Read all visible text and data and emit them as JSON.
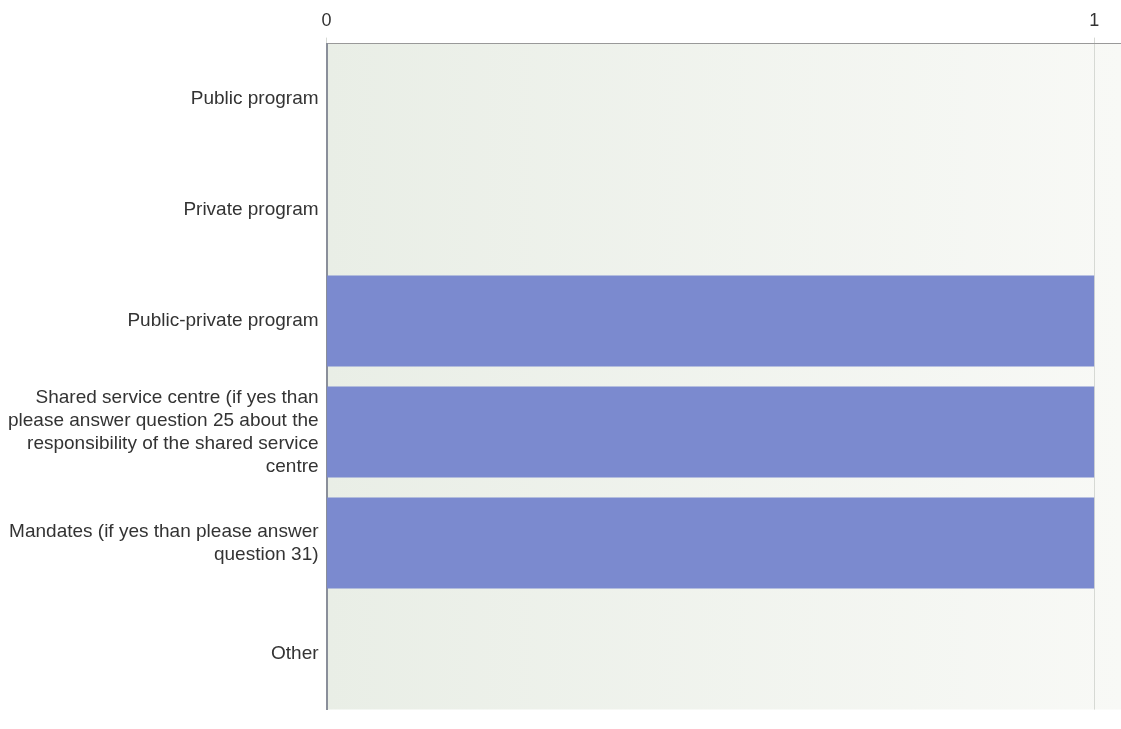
{
  "chart_data": {
    "type": "bar",
    "orientation": "horizontal",
    "categories": [
      "Public program",
      "Private program",
      "Public-private program",
      "Shared service centre (if yes than please answer question 25 about the responsibility of the shared service centre",
      "Mandates (if yes than please answer question 31)",
      "Other"
    ],
    "values": [
      0,
      0,
      1,
      1,
      1,
      0
    ],
    "color": "#7b8acf",
    "xlim": [
      0,
      1.035
    ],
    "xticks": [
      0,
      1
    ],
    "grid": "x"
  }
}
